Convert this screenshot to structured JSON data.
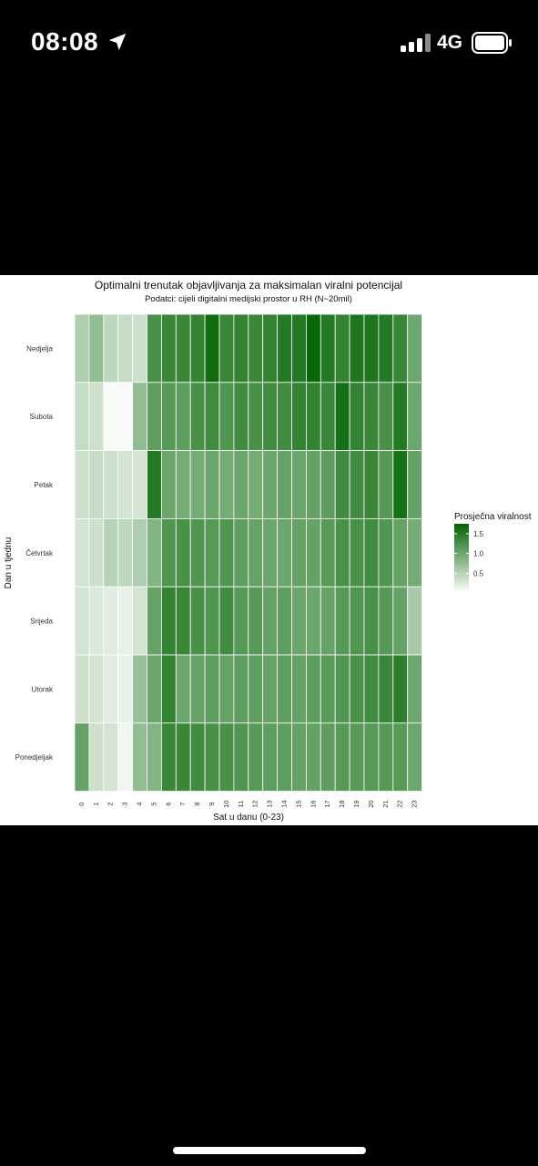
{
  "status_bar": {
    "time": "08:08",
    "network": "4G",
    "icons": [
      "location-arrow-icon",
      "signal-bars-icon",
      "battery-icon"
    ]
  },
  "chart_data": {
    "type": "heatmap",
    "title": "Optimalni trenutak objavljivanja za maksimalan viralni potencijal",
    "subtitle": "Podatci: cijeli digitalni medijski prostor u RH (N~20mil)",
    "xlabel": "Sat u danu (0-23)",
    "ylabel": "Dan u tjednu",
    "x": [
      "0",
      "1",
      "2",
      "3",
      "4",
      "5",
      "6",
      "7",
      "8",
      "9",
      "10",
      "11",
      "12",
      "13",
      "14",
      "15",
      "16",
      "17",
      "18",
      "19",
      "20",
      "21",
      "22",
      "23"
    ],
    "y": [
      "Nedjelja",
      "Subota",
      "Petak",
      "Četvrtak",
      "Srijeda",
      "Utorak",
      "Ponedjeljak"
    ],
    "values": [
      [
        0.55,
        0.75,
        0.45,
        0.4,
        0.35,
        1.25,
        1.35,
        1.35,
        1.4,
        1.65,
        1.35,
        1.4,
        1.35,
        1.4,
        1.5,
        1.5,
        1.7,
        1.5,
        1.4,
        1.55,
        1.55,
        1.5,
        1.35,
        1.0
      ],
      [
        0.4,
        0.35,
        0.05,
        0.05,
        0.75,
        1.1,
        1.15,
        1.1,
        1.25,
        1.3,
        1.2,
        1.3,
        1.25,
        1.3,
        1.3,
        1.4,
        1.4,
        1.35,
        1.6,
        1.4,
        1.35,
        1.25,
        1.5,
        1.0
      ],
      [
        0.35,
        0.4,
        0.35,
        0.3,
        0.3,
        1.5,
        1.0,
        0.95,
        0.95,
        1.0,
        0.95,
        1.0,
        0.95,
        1.0,
        1.05,
        1.0,
        1.05,
        1.1,
        1.3,
        1.3,
        1.35,
        1.15,
        1.6,
        1.05
      ],
      [
        0.3,
        0.35,
        0.5,
        0.45,
        0.55,
        0.85,
        1.2,
        1.25,
        1.2,
        1.15,
        1.2,
        1.1,
        1.05,
        1.0,
        1.0,
        1.05,
        1.05,
        1.15,
        1.25,
        1.25,
        1.3,
        1.2,
        1.05,
        0.95
      ],
      [
        0.3,
        0.25,
        0.2,
        0.15,
        0.3,
        1.05,
        1.4,
        1.35,
        1.25,
        1.2,
        1.3,
        1.15,
        1.15,
        1.05,
        1.1,
        1.0,
        1.0,
        1.05,
        1.15,
        1.2,
        1.25,
        1.15,
        1.05,
        0.6
      ],
      [
        0.35,
        0.3,
        0.2,
        0.15,
        0.7,
        1.0,
        1.4,
        1.0,
        1.05,
        1.1,
        1.05,
        1.1,
        1.1,
        1.05,
        1.1,
        1.05,
        1.1,
        1.15,
        1.2,
        1.25,
        1.3,
        1.35,
        1.45,
        1.0
      ],
      [
        1.05,
        0.35,
        0.3,
        0.1,
        0.75,
        0.85,
        1.35,
        1.35,
        1.3,
        1.25,
        1.25,
        1.2,
        1.15,
        1.1,
        1.1,
        1.05,
        1.05,
        1.1,
        1.15,
        1.15,
        1.15,
        1.15,
        1.15,
        1.0
      ]
    ],
    "colorbar": {
      "title": "Prosječna viralnost",
      "min": 0.0,
      "max": 1.75,
      "ticks": [
        "0.5",
        "1.0",
        "1.5"
      ],
      "tick_values": [
        0.5,
        1.0,
        1.5
      ]
    },
    "colors": {
      "low": "#ffffff",
      "high": "#006400"
    },
    "grid": true,
    "legend_position": "right"
  }
}
